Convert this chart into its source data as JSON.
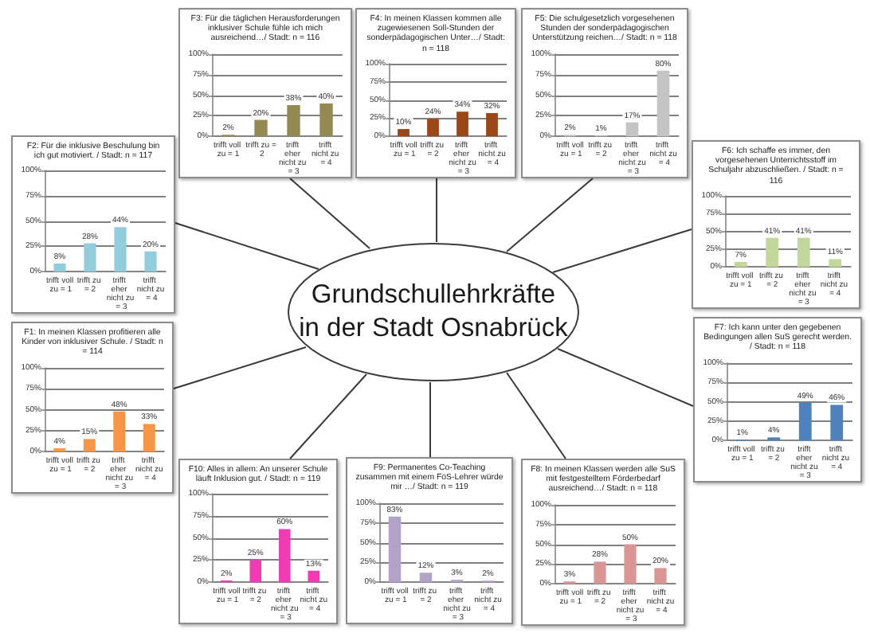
{
  "chart_data": [
    {
      "type": "bar",
      "title": "F3: Für die täglichen Herausforderungen inklusiver Schule fühle ich mich ausreichend…/ Stadt: n = 116",
      "categories": [
        "trifft voll zu = 1",
        "trifft zu = 2",
        "trifft eher nicht zu = 3",
        "trifft nicht zu = 4"
      ],
      "values": [
        2,
        20,
        38,
        40
      ],
      "value_labels": [
        "2%",
        "20%",
        "38%",
        "40%"
      ],
      "color": "#938953",
      "ylim": [
        0,
        100
      ],
      "yticks": [
        {
          "value": 0,
          "label": "0%"
        },
        {
          "value": 25,
          "label": "25%"
        },
        {
          "value": 50,
          "label": "50%"
        },
        {
          "value": 75,
          "label": "75%"
        },
        {
          "value": 100,
          "label": "100%"
        }
      ],
      "grid": "y"
    },
    {
      "type": "bar",
      "title": "F4: In meinen Klassen kommen alle zugewiesenen Soll-Stunden der sonderpädagogischen Unter…/ Stadt: n = 118",
      "categories": [
        "trifft voll zu = 1",
        "trifft zu = 2",
        "trifft eher nicht zu = 3",
        "trifft nicht zu = 4"
      ],
      "values": [
        10,
        24,
        34,
        32
      ],
      "value_labels": [
        "10%",
        "24%",
        "34%",
        "32%"
      ],
      "color": "#9c4719",
      "ylim": [
        0,
        100
      ],
      "yticks": [
        {
          "value": 0,
          "label": "0%"
        },
        {
          "value": 25,
          "label": "25%"
        },
        {
          "value": 50,
          "label": "50%"
        },
        {
          "value": 75,
          "label": "75%"
        },
        {
          "value": 100,
          "label": "100%"
        }
      ],
      "grid": "y"
    },
    {
      "type": "bar",
      "title": "F5: Die schulgesetzlich vorgesehenen Stunden der sonderpädagogischen Unterstützung reichen…/ Stadt: n = 118",
      "categories": [
        "trifft voll zu = 1",
        "trifft zu = 2",
        "trifft eher nicht zu = 3",
        "trifft nicht zu = 4"
      ],
      "values": [
        2,
        1,
        17,
        80
      ],
      "value_labels": [
        "2%",
        "1%",
        "17%",
        "80%"
      ],
      "color": "#c4c4c4",
      "ylim": [
        0,
        100
      ],
      "yticks": [
        {
          "value": 0,
          "label": "0%"
        },
        {
          "value": 25,
          "label": "25%"
        },
        {
          "value": 50,
          "label": "50%"
        },
        {
          "value": 75,
          "label": "75%"
        },
        {
          "value": 100,
          "label": "100%"
        }
      ],
      "grid": "y"
    },
    {
      "type": "bar",
      "title": "F2: Für die inklusive Beschulung bin ich gut motiviert. / Stadt: n = 117",
      "categories": [
        "trifft voll zu = 1",
        "trifft zu = 2",
        "trifft eher nicht zu = 3",
        "trifft nicht zu = 4"
      ],
      "values": [
        8,
        28,
        44,
        20
      ],
      "value_labels": [
        "8%",
        "28%",
        "44%",
        "20%"
      ],
      "color": "#93cddd",
      "ylim": [
        0,
        100
      ],
      "yticks": [
        {
          "value": 0,
          "label": "0%"
        },
        {
          "value": 25,
          "label": "25%"
        },
        {
          "value": 50,
          "label": "50%"
        },
        {
          "value": 75,
          "label": "75%"
        },
        {
          "value": 100,
          "label": "100%"
        }
      ],
      "grid": "y"
    },
    {
      "type": "bar",
      "title": "F6: Ich schaffe es immer, den vorgesehenen Unterrichtsstoff im Schuljahr abzuschließen. / Stadt: n = 116",
      "categories": [
        "trifft voll zu = 1",
        "trifft zu = 2",
        "trifft eher nicht zu = 3",
        "trifft nicht zu = 4"
      ],
      "values": [
        7,
        41,
        41,
        11
      ],
      "value_labels": [
        "7%",
        "41%",
        "41%",
        "11%"
      ],
      "color": "#c3d69b",
      "ylim": [
        0,
        100
      ],
      "yticks": [
        {
          "value": 0,
          "label": "0%"
        },
        {
          "value": 25,
          "label": "25%"
        },
        {
          "value": 50,
          "label": "50%"
        },
        {
          "value": 75,
          "label": "75%"
        },
        {
          "value": 100,
          "label": "100%"
        }
      ],
      "grid": "y"
    },
    {
      "type": "other",
      "title": "Grundschullehrkräfte in der Stadt Osnabrück"
    },
    {
      "type": "bar",
      "title": "F1: In meinen Klassen profitieren alle Kinder von inklusiver Schule. / Stadt: n = 114",
      "categories": [
        "trifft voll zu = 1",
        "trifft zu = 2",
        "trifft eher nicht zu = 3",
        "trifft nicht zu = 4"
      ],
      "values": [
        4,
        15,
        48,
        33
      ],
      "value_labels": [
        "4%",
        "15%",
        "48%",
        "33%"
      ],
      "color": "#f79646",
      "ylim": [
        0,
        100
      ],
      "yticks": [
        {
          "value": 0,
          "label": "0%"
        },
        {
          "value": 25,
          "label": "25%"
        },
        {
          "value": 50,
          "label": "50%"
        },
        {
          "value": 75,
          "label": "75%"
        },
        {
          "value": 100,
          "label": "100%"
        }
      ],
      "grid": "y"
    },
    {
      "type": "bar",
      "title": "F7: Ich kann unter den gegebenen Bedingungen allen SuS gerecht werden. / Stadt: n = 118",
      "categories": [
        "trifft voll zu = 1",
        "trifft zu = 2",
        "trifft eher nicht zu = 3",
        "trifft nicht zu = 4"
      ],
      "values": [
        1,
        4,
        49,
        46
      ],
      "value_labels": [
        "1%",
        "4%",
        "49%",
        "46%"
      ],
      "color": "#4f81bd",
      "ylim": [
        0,
        100
      ],
      "yticks": [
        {
          "value": 0,
          "label": "0%"
        },
        {
          "value": 25,
          "label": "25%"
        },
        {
          "value": 50,
          "label": "50%"
        },
        {
          "value": 75,
          "label": "75%"
        },
        {
          "value": 100,
          "label": "100%"
        }
      ],
      "grid": "y"
    },
    {
      "type": "bar",
      "title": "F10: Alles in allem: An unserer Schule läuft Inklusion gut. / Stadt: n = 119",
      "categories": [
        "trifft voll zu = 1",
        "trifft zu = 2",
        "trifft eher nicht zu = 3",
        "trifft nicht zu = 4"
      ],
      "values": [
        2,
        25,
        60,
        13
      ],
      "value_labels": [
        "2%",
        "25%",
        "60%",
        "13%"
      ],
      "color": "#f03cb4",
      "ylim": [
        0,
        100
      ],
      "yticks": [
        {
          "value": 0,
          "label": "0%"
        },
        {
          "value": 25,
          "label": "25%"
        },
        {
          "value": 50,
          "label": "50%"
        },
        {
          "value": 75,
          "label": "75%"
        },
        {
          "value": 100,
          "label": "100%"
        }
      ],
      "grid": "y"
    },
    {
      "type": "bar",
      "title": "F9: Permanentes Co-Teaching zusammen mit einem FöS-Lehrer würde mir …/ Stadt: n = 119",
      "categories": [
        "trifft voll zu = 1",
        "trifft zu = 2",
        "trifft eher nicht zu = 3",
        "trifft nicht zu = 4"
      ],
      "values": [
        83,
        12,
        3,
        2
      ],
      "value_labels": [
        "83%",
        "12%",
        "3%",
        "2%"
      ],
      "color": "#b3a2c7",
      "ylim": [
        0,
        100
      ],
      "yticks": [
        {
          "value": 0,
          "label": "0%"
        },
        {
          "value": 25,
          "label": "25%"
        },
        {
          "value": 50,
          "label": "50%"
        },
        {
          "value": 75,
          "label": "75%"
        },
        {
          "value": 100,
          "label": "100%"
        }
      ],
      "grid": "y"
    },
    {
      "type": "bar",
      "title": "F8: In meinen Klassen werden alle SuS mit festgestelltem Förderbedarf ausreichend…/ Stadt: n = 118",
      "categories": [
        "trifft voll zu = 1",
        "trifft zu = 2",
        "trifft eher nicht zu = 3",
        "trifft nicht zu = 4"
      ],
      "values": [
        3,
        28,
        50,
        20
      ],
      "value_labels": [
        "3%",
        "28%",
        "50%",
        "20%"
      ],
      "color": "#d99694",
      "ylim": [
        0,
        100
      ],
      "yticks": [
        {
          "value": 0,
          "label": "0%"
        },
        {
          "value": 25,
          "label": "25%"
        },
        {
          "value": 50,
          "label": "50%"
        },
        {
          "value": 75,
          "label": "75%"
        },
        {
          "value": 100,
          "label": "100%"
        }
      ],
      "grid": "y"
    }
  ]
}
